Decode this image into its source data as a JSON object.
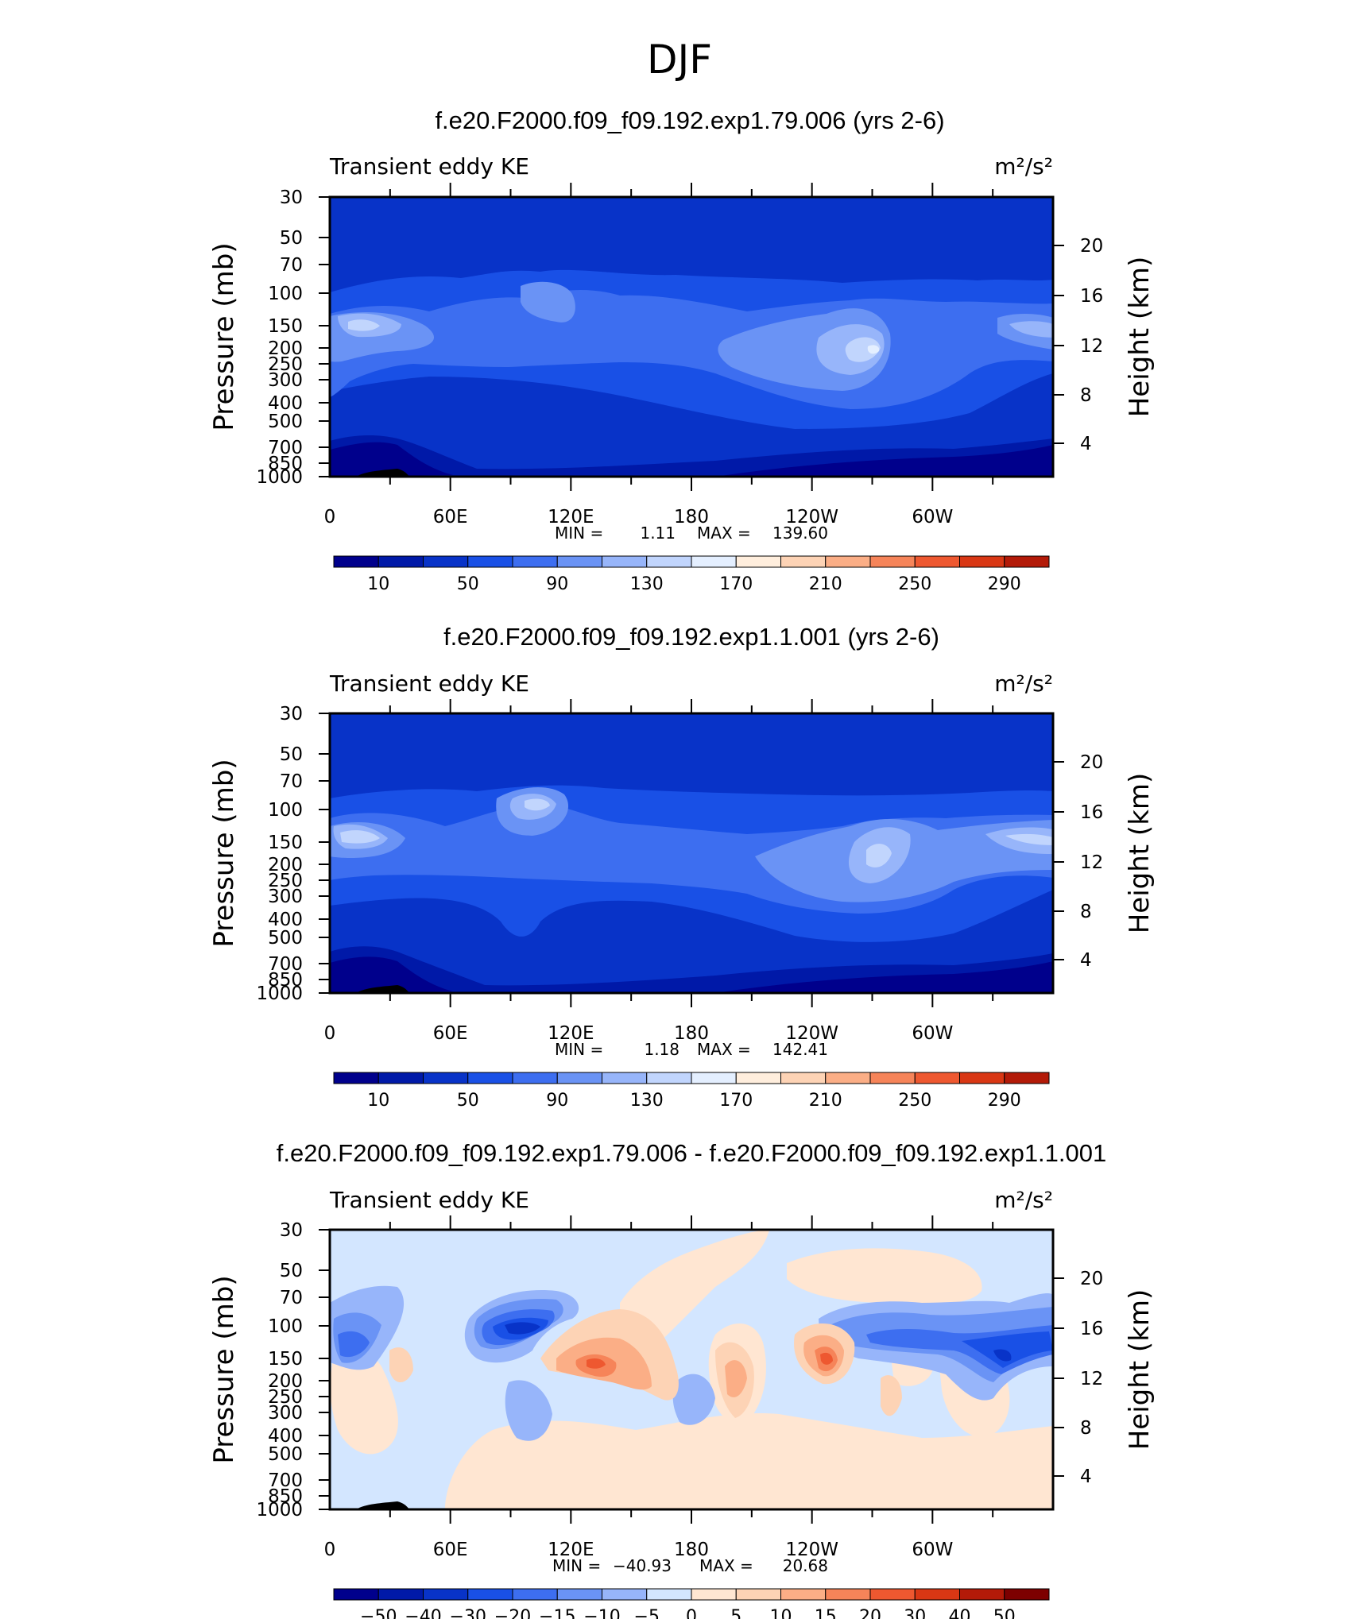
{
  "figure_title": "DJF",
  "colors": {
    "abs_palette": [
      "#00008c",
      "#0019a8",
      "#0833c8",
      "#1950e6",
      "#3d6ef0",
      "#6a93f5",
      "#97b5fa",
      "#c1d5fd",
      "#e4efff",
      "#ffeedd",
      "#fdd3b5",
      "#fbae86",
      "#f68459",
      "#ee5830",
      "#d93714",
      "#b31a08",
      "#7d0000"
    ],
    "diff_palette": [
      "#00008c",
      "#0019a8",
      "#0833c8",
      "#1950e6",
      "#3d6ef0",
      "#6a93f5",
      "#97b5fa",
      "#d3e6ff",
      "#ffe6d2",
      "#fdd3b5",
      "#fbae86",
      "#f68459",
      "#ee5830",
      "#d93714",
      "#b31a08",
      "#7d0000"
    ]
  },
  "chart_data": [
    {
      "type": "heatmap",
      "title": "f.e20.F2000.f09_f09.192.exp1.79.006 (yrs 2-6)",
      "variable": "Transient eddy KE",
      "units": "m²/s²",
      "ylabel": "Pressure (mb)",
      "y2label": "Height (km)",
      "x_ticks": [
        "0",
        "60E",
        "120E",
        "180",
        "120W",
        "60W"
      ],
      "y_ticks": [
        "30",
        "50",
        "70",
        "100",
        "150",
        "200",
        "250",
        "300",
        "400",
        "500",
        "700",
        "850",
        "1000"
      ],
      "y2_ticks": [
        "20",
        "16",
        "12",
        "8",
        "4"
      ],
      "min_label": "MIN =",
      "min": "1.11",
      "max_label": "MAX =",
      "max": "139.60",
      "colorbar_levels": [
        10,
        30,
        50,
        70,
        90,
        110,
        130,
        150,
        170,
        190,
        210,
        230,
        250,
        270,
        290
      ],
      "colorbar_labels": [
        "10",
        "50",
        "90",
        "130",
        "170",
        "210",
        "250",
        "290"
      ]
    },
    {
      "type": "heatmap",
      "title": "f.e20.F2000.f09_f09.192.exp1.1.001 (yrs 2-6)",
      "variable": "Transient eddy KE",
      "units": "m²/s²",
      "ylabel": "Pressure (mb)",
      "y2label": "Height (km)",
      "x_ticks": [
        "0",
        "60E",
        "120E",
        "180",
        "120W",
        "60W"
      ],
      "y_ticks": [
        "30",
        "50",
        "70",
        "100",
        "150",
        "200",
        "250",
        "300",
        "400",
        "500",
        "700",
        "850",
        "1000"
      ],
      "y2_ticks": [
        "20",
        "16",
        "12",
        "8",
        "4"
      ],
      "min_label": "MIN =",
      "min": "1.18",
      "max_label": "MAX =",
      "max": "142.41",
      "colorbar_levels": [
        10,
        30,
        50,
        70,
        90,
        110,
        130,
        150,
        170,
        190,
        210,
        230,
        250,
        270,
        290
      ],
      "colorbar_labels": [
        "10",
        "50",
        "90",
        "130",
        "170",
        "210",
        "250",
        "290"
      ]
    },
    {
      "type": "heatmap",
      "title": "f.e20.F2000.f09_f09.192.exp1.79.006 - f.e20.F2000.f09_f09.192.exp1.1.001",
      "variable": "Transient eddy KE",
      "units": "m²/s²",
      "ylabel": "Pressure (mb)",
      "y2label": "Height (km)",
      "x_ticks": [
        "0",
        "60E",
        "120E",
        "180",
        "120W",
        "60W"
      ],
      "y_ticks": [
        "30",
        "50",
        "70",
        "100",
        "150",
        "200",
        "250",
        "300",
        "400",
        "500",
        "700",
        "850",
        "1000"
      ],
      "y2_ticks": [
        "20",
        "16",
        "12",
        "8",
        "4"
      ],
      "min_label": "MIN =",
      "min": "−40.93",
      "max_label": "MAX =",
      "max": "20.68",
      "colorbar_levels": [
        -50,
        -40,
        -30,
        -20,
        -15,
        -10,
        -5,
        0,
        5,
        10,
        15,
        20,
        30,
        40,
        50
      ],
      "colorbar_labels": [
        "−50",
        "−40",
        "−30",
        "−20",
        "−15",
        "−10",
        "−5",
        "0",
        "5",
        "10",
        "15",
        "20",
        "30",
        "40",
        "50"
      ]
    }
  ]
}
